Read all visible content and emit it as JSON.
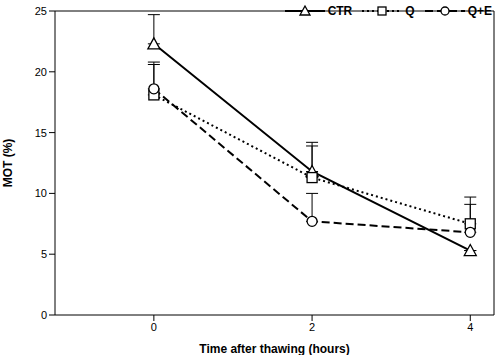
{
  "chart_data": {
    "type": "line",
    "x_label": "Time after thawing (hours)",
    "y_label": "MOT (%)",
    "x": [
      0,
      2,
      4
    ],
    "xlim": [
      -1.25,
      4.3
    ],
    "xticks": [
      0,
      2,
      4
    ],
    "ylim": [
      0,
      25
    ],
    "yticks": [
      0,
      5,
      10,
      15,
      20,
      25
    ],
    "grid": false,
    "legend": "top right",
    "series": [
      {
        "name": "CTR",
        "color": "#000000",
        "marker": "triangle",
        "line_style": "solid",
        "values": [
          22.3,
          11.8,
          5.3
        ],
        "errors": [
          2.4,
          2.4,
          0
        ]
      },
      {
        "name": "Q",
        "color": "#000000",
        "marker": "square",
        "line_style": "dotted",
        "values": [
          18.1,
          11.3,
          7.5
        ],
        "errors": [
          2.7,
          2.6,
          2.2
        ]
      },
      {
        "name": "Q+E",
        "color": "#000000",
        "marker": "circle",
        "line_style": "dashed",
        "values": [
          18.6,
          7.7,
          6.8
        ],
        "errors": [
          2.0,
          2.3,
          2.3
        ]
      }
    ]
  }
}
